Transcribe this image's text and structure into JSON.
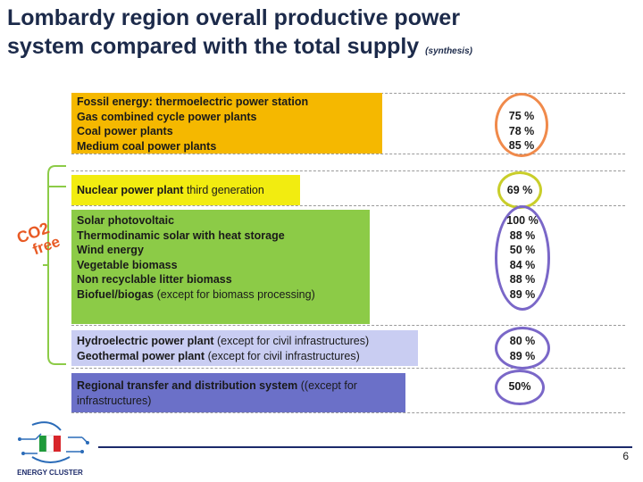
{
  "title": {
    "line1": "Lombardy region overall productive power",
    "line2": "system compared with the total supply",
    "note": "(synthesis)"
  },
  "co2_label": {
    "line1": "CO2",
    "line2": "free"
  },
  "logo_text": "ENERGY CLUSTER",
  "page_number": "6",
  "colors": {
    "fossil": "#F5B800",
    "nuclear": "#F2EC10",
    "renewable": "#8CCB47",
    "hydro": "#C9CDF2",
    "transfer": "#6B70C8",
    "oval_orange": "#F08A4B",
    "oval_yellow": "#C9CE2A",
    "oval_purple": "#7A67C8",
    "brace": "#8CCB47"
  },
  "groups": [
    {
      "name": "fossil",
      "lines": [
        {
          "bold": "Fossil energy: thermoelectric power station",
          "normal": ""
        },
        {
          "bold": "Gas combined cycle power plants",
          "normal": ""
        },
        {
          "bold": "Coal power plants",
          "normal": ""
        },
        {
          "bold": "Medium coal power plants",
          "normal": ""
        }
      ],
      "percents": [
        "",
        "75 %",
        "78 %",
        "85 %"
      ]
    },
    {
      "name": "nuclear",
      "lines": [
        {
          "bold": "Nuclear power plant",
          "normal": " third generation"
        }
      ],
      "percents": [
        "69 %"
      ]
    },
    {
      "name": "renewable",
      "lines": [
        {
          "bold": "Solar photovoltaic",
          "normal": ""
        },
        {
          "bold": "Thermodinamic solar  with heat storage",
          "normal": ""
        },
        {
          "bold": "Wind energy",
          "normal": ""
        },
        {
          "bold": "Vegetable biomass",
          "normal": ""
        },
        {
          "bold": "Non recyclable litter biomass",
          "normal": ""
        },
        {
          "bold": "Biofuel/biogas",
          "normal": " (except for biomass processing)"
        }
      ],
      "percents": [
        "100 %",
        "88 %",
        "50 %",
        "84 %",
        "88 %",
        "89 %"
      ]
    },
    {
      "name": "hydro",
      "lines": [
        {
          "bold": "Hydroelectric power plant",
          "normal": " (except for civil infrastructures)"
        },
        {
          "bold": "Geothermal power plant",
          "normal": " (except for civil infrastructures)"
        }
      ],
      "percents": [
        "80 %",
        "89 %"
      ]
    },
    {
      "name": "transfer",
      "lines": [
        {
          "bold": "Regional transfer and distribution system",
          "normal": " ((except for"
        },
        {
          "bold": "",
          "normal": "infrastructures)"
        }
      ],
      "percents": [
        "50%"
      ]
    }
  ]
}
